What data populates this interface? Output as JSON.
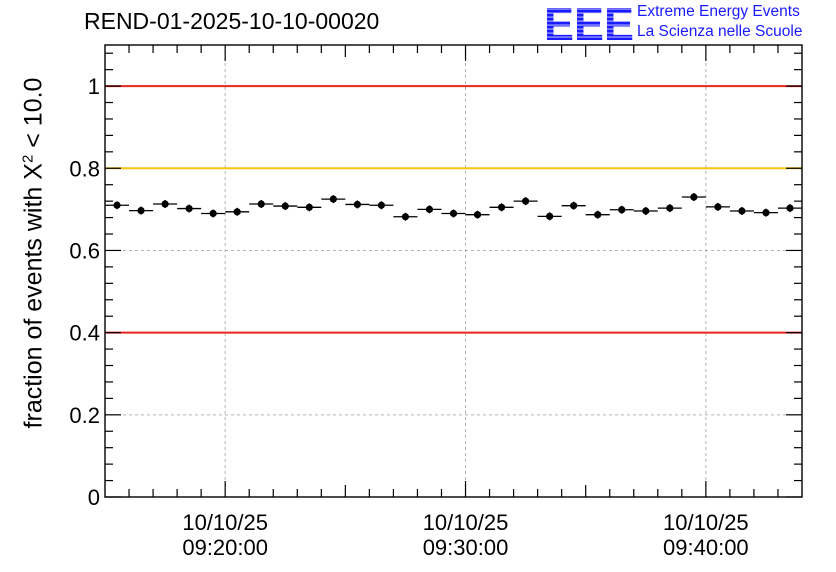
{
  "chart_data": {
    "type": "scatter",
    "title": "REND-01-2025-10-10-00020",
    "ylabel": "fraction of events with X",
    "ylabel_sup": "2",
    "ylabel_suffix": " < 10.0",
    "xlabel": "",
    "x_unit": "minutes after 09:15:00",
    "xlim": [
      0,
      29
    ],
    "ylim": [
      0,
      1.1
    ],
    "yticks": [
      {
        "value": 0,
        "label": "0"
      },
      {
        "value": 0.2,
        "label": "0.2"
      },
      {
        "value": 0.4,
        "label": "0.4"
      },
      {
        "value": 0.6,
        "label": "0.6"
      },
      {
        "value": 0.8,
        "label": "0.8"
      },
      {
        "value": 1,
        "label": "1"
      }
    ],
    "xticks": [
      {
        "value": 5,
        "date": "10/10/25",
        "time": "09:20:00"
      },
      {
        "value": 15,
        "date": "10/10/25",
        "time": "09:30:00"
      },
      {
        "value": 25,
        "date": "10/10/25",
        "time": "09:40:00"
      }
    ],
    "grid": true,
    "reference_lines": [
      {
        "y": 1.0,
        "color": "#e8261c"
      },
      {
        "y": 0.8,
        "color": "#ffc20e"
      },
      {
        "y": 0.4,
        "color": "#e8261c"
      }
    ],
    "series": [
      {
        "name": "fraction",
        "x": [
          0.5,
          1.5,
          2.5,
          3.5,
          4.5,
          5.5,
          6.5,
          7.5,
          8.5,
          9.5,
          10.5,
          11.5,
          12.5,
          13.5,
          14.5,
          15.5,
          16.5,
          17.5,
          18.5,
          19.5,
          20.5,
          21.5,
          22.5,
          23.5,
          24.5,
          25.5,
          26.5,
          27.5,
          28.5
        ],
        "y": [
          0.71,
          0.697,
          0.713,
          0.702,
          0.69,
          0.694,
          0.713,
          0.708,
          0.705,
          0.725,
          0.712,
          0.71,
          0.682,
          0.7,
          0.69,
          0.687,
          0.705,
          0.72,
          0.683,
          0.709,
          0.687,
          0.699,
          0.696,
          0.703,
          0.73,
          0.706,
          0.696,
          0.692,
          0.703
        ]
      }
    ]
  },
  "logo": {
    "mark": "EEE",
    "line1": "Extreme Energy Events",
    "line2": "La Scienza nelle Scuole",
    "color": "#1a1aff"
  }
}
